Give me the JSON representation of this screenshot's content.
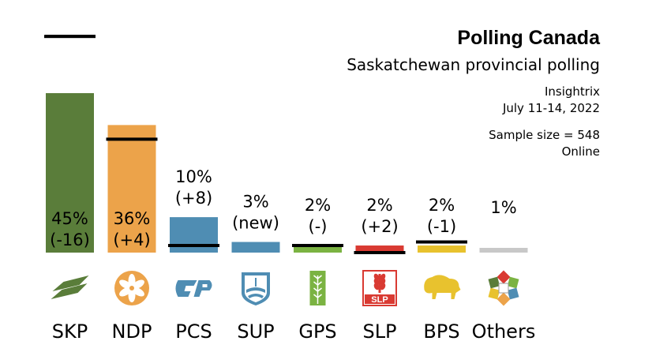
{
  "header": {
    "title": "Polling Canada",
    "subtitle": "Saskatchewan provincial polling",
    "pollster": "Insightrix",
    "dates": "July 11-14, 2022",
    "sample": "Sample size = 548",
    "method": "Online"
  },
  "chart_data": {
    "type": "bar",
    "categories": [
      "SKP",
      "NDP",
      "PCS",
      "SUP",
      "GPS",
      "SLP",
      "BPS",
      "Others"
    ],
    "values": [
      45,
      36,
      10,
      3,
      2,
      2,
      2,
      1
    ],
    "changes": [
      "-16",
      "+4",
      "+8",
      "new",
      "-",
      "+2",
      "-1",
      ""
    ],
    "previous": [
      61,
      32,
      2,
      null,
      2,
      0,
      3,
      null
    ],
    "value_labels": [
      "45%",
      "36%",
      "10%",
      "3%",
      "2%",
      "2%",
      "2%",
      "1%"
    ],
    "change_labels": [
      "(-16)",
      "(+4)",
      "(+8)",
      "(new)",
      "(-)",
      "(+2)",
      "(-1)",
      ""
    ],
    "colors": [
      "#5a7d3a",
      "#eca34a",
      "#4f8db3",
      "#4f8db3",
      "#7bb342",
      "#d93a32",
      "#e8c22e",
      "#c8c8c8"
    ],
    "icons": [
      "saskatchewan-party-logo",
      "ndp-logo",
      "pc-logo",
      "buffalo-party-logo",
      "green-party-logo",
      "liberal-party-logo",
      "buffalo-icon",
      "others-quilt-icon"
    ],
    "legend": "top-left",
    "grid": false,
    "ylim": [
      0,
      45
    ]
  }
}
